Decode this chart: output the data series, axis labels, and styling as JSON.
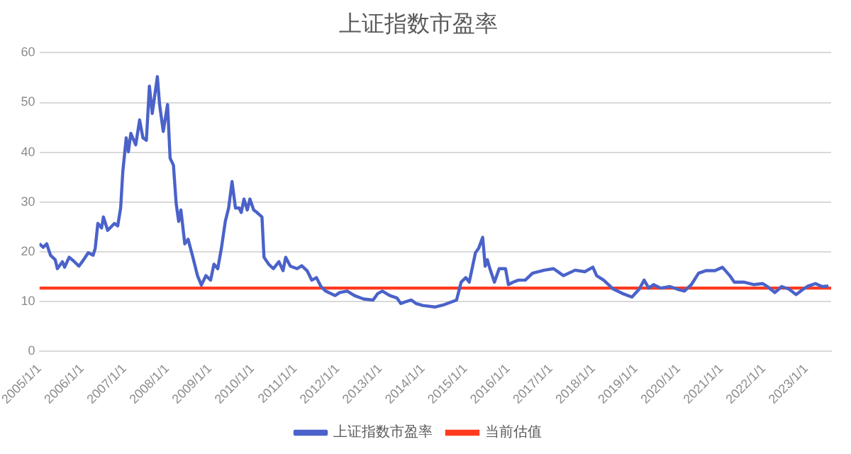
{
  "chart_data": {
    "type": "line",
    "title": "上证指数市盈率",
    "x": [
      "2005-01-01",
      "2005-02-03",
      "2005-03-03",
      "2005-04-05",
      "2005-05-15",
      "2005-06-03",
      "2005-07-16",
      "2005-08-04",
      "2005-09-13",
      "2005-10-23",
      "2005-12-05",
      "2006-01-15",
      "2006-02-24",
      "2006-04-05",
      "2006-04-23",
      "2006-05-15",
      "2006-06-17",
      "2006-07-02",
      "2006-08-08",
      "2006-10-05",
      "2006-11-03",
      "2006-11-28",
      "2006-12-16",
      "2007-01-15",
      "2007-02-03",
      "2007-02-24",
      "2007-04-05",
      "2007-05-08",
      "2007-06-06",
      "2007-07-05",
      "2007-07-31",
      "2007-08-25",
      "2007-10-08",
      "2007-10-27",
      "2007-11-28",
      "2008-01-04",
      "2008-01-26",
      "2008-02-24",
      "2008-03-17",
      "2008-04-08",
      "2008-04-27",
      "2008-05-30",
      "2008-06-28",
      "2008-08-08",
      "2008-09-17",
      "2008-10-20",
      "2008-11-28",
      "2009-01-08",
      "2009-02-06",
      "2009-03-08",
      "2009-04-09",
      "2009-05-12",
      "2009-06-10",
      "2009-07-09",
      "2009-08-08",
      "2009-09-09",
      "2009-09-27",
      "2009-10-20",
      "2009-11-18",
      "2009-12-10",
      "2010-01-12",
      "2010-02-10",
      "2010-03-22",
      "2010-04-09",
      "2010-05-19",
      "2010-06-28",
      "2010-08-15",
      "2010-09-20",
      "2010-10-12",
      "2010-11-22",
      "2011-01-19",
      "2011-02-28",
      "2011-04-13",
      "2011-05-23",
      "2011-07-02",
      "2011-08-11",
      "2011-09-20",
      "2011-12-10",
      "2012-01-19",
      "2012-03-22",
      "2012-05-23",
      "2012-08-11",
      "2012-10-31",
      "2012-12-10",
      "2013-01-19",
      "2013-03-22",
      "2013-05-23",
      "2013-06-25",
      "2013-08-11",
      "2013-09-24",
      "2013-11-03",
      "2014-01-01",
      "2014-04-13",
      "2014-07-05",
      "2014-10-16",
      "2014-11-25",
      "2015-01-04",
      "2015-02-03",
      "2015-03-26",
      "2015-04-23",
      "2015-05-27",
      "2015-06-18",
      "2015-07-06",
      "2015-07-28",
      "2015-09-06",
      "2015-10-16",
      "2015-12-10",
      "2016-01-04",
      "2016-02-14",
      "2016-03-29",
      "2016-05-27",
      "2016-07-28",
      "2016-11-07",
      "2017-01-26",
      "2017-04-20",
      "2017-07-28",
      "2017-10-20",
      "2017-12-28",
      "2018-01-30",
      "2018-03-29",
      "2018-06-21",
      "2018-09-09",
      "2018-11-28",
      "2019-01-30",
      "2019-03-11",
      "2019-04-20",
      "2019-05-31",
      "2019-07-31",
      "2019-10-20",
      "2019-12-20",
      "2020-02-21",
      "2020-04-20",
      "2020-06-21",
      "2020-08-22",
      "2020-11-10",
      "2021-01-12",
      "2021-03-15",
      "2021-04-23",
      "2021-07-13",
      "2021-10-05",
      "2021-12-24",
      "2022-02-03",
      "2022-04-06",
      "2022-06-03",
      "2022-08-04",
      "2022-10-05",
      "2022-12-06",
      "2023-01-15",
      "2023-03-18",
      "2023-05-16",
      "2023-07-08"
    ],
    "series": [
      {
        "name": "上证指数市盈率",
        "color": "#4a62c9",
        "values": [
          21.6,
          20.9,
          21.6,
          19.3,
          18.4,
          16.6,
          18.0,
          16.9,
          18.9,
          18.1,
          17.1,
          18.4,
          19.8,
          19.3,
          20.7,
          25.7,
          24.8,
          27.0,
          24.3,
          25.7,
          25.2,
          28.8,
          36.1,
          42.9,
          40.1,
          43.8,
          41.5,
          46.5,
          42.9,
          42.4,
          53.3,
          47.8,
          55.2,
          49.6,
          44.2,
          49.6,
          38.8,
          37.4,
          29.7,
          26.1,
          28.4,
          21.6,
          22.5,
          18.9,
          15.2,
          13.3,
          15.2,
          14.3,
          17.5,
          16.6,
          20.7,
          26.1,
          28.8,
          34.1,
          28.8,
          28.8,
          27.9,
          30.6,
          28.4,
          30.6,
          28.4,
          27.9,
          27.0,
          18.9,
          17.5,
          16.6,
          18.0,
          16.2,
          18.9,
          17.1,
          16.6,
          17.2,
          16.2,
          14.3,
          14.8,
          13.0,
          12.1,
          11.2,
          11.8,
          12.1,
          11.2,
          10.5,
          10.3,
          11.6,
          12.1,
          11.2,
          10.7,
          9.6,
          10.0,
          10.3,
          9.6,
          9.2,
          8.9,
          9.4,
          10.3,
          13.9,
          14.8,
          13.9,
          19.8,
          20.7,
          22.9,
          17.1,
          18.4,
          16.6,
          13.9,
          16.6,
          16.6,
          13.4,
          13.9,
          14.3,
          14.3,
          15.7,
          16.3,
          16.6,
          15.2,
          16.3,
          16.0,
          16.9,
          15.2,
          14.3,
          12.5,
          11.6,
          10.9,
          12.5,
          14.3,
          12.7,
          13.4,
          12.7,
          13.0,
          12.5,
          12.1,
          13.4,
          15.7,
          16.2,
          16.2,
          16.9,
          15.2,
          13.9,
          13.9,
          13.4,
          13.6,
          13.0,
          11.8,
          13.0,
          12.5,
          11.4,
          12.5,
          13.1,
          13.6,
          13.0,
          13.1
        ]
      }
    ],
    "ref_lines": [
      {
        "axis": "y",
        "value": 12.7,
        "label": "当前估值",
        "color": "#ff3b1f"
      }
    ],
    "xlim": [
      "2005-01-01",
      "2023-08-01"
    ],
    "xticks": [
      {
        "value": "2005-01-01",
        "label": "2005/1/1"
      },
      {
        "value": "2006-01-01",
        "label": "2006/1/1"
      },
      {
        "value": "2007-01-01",
        "label": "2007/1/1"
      },
      {
        "value": "2008-01-01",
        "label": "2008/1/1"
      },
      {
        "value": "2009-01-01",
        "label": "2009/1/1"
      },
      {
        "value": "2010-01-01",
        "label": "2010/1/1"
      },
      {
        "value": "2011-01-01",
        "label": "2011/1/1"
      },
      {
        "value": "2012-01-01",
        "label": "2012/1/1"
      },
      {
        "value": "2013-01-01",
        "label": "2013/1/1"
      },
      {
        "value": "2014-01-01",
        "label": "2014/1/1"
      },
      {
        "value": "2015-01-01",
        "label": "2015/1/1"
      },
      {
        "value": "2016-01-01",
        "label": "2016/1/1"
      },
      {
        "value": "2017-01-01",
        "label": "2017/1/1"
      },
      {
        "value": "2018-01-01",
        "label": "2018/1/1"
      },
      {
        "value": "2019-01-01",
        "label": "2019/1/1"
      },
      {
        "value": "2020-01-01",
        "label": "2020/1/1"
      },
      {
        "value": "2021-01-01",
        "label": "2021/1/1"
      },
      {
        "value": "2022-01-01",
        "label": "2022/1/1"
      },
      {
        "value": "2023-01-01",
        "label": "2023/1/1"
      }
    ],
    "ylim": [
      0,
      60
    ],
    "yticks": [
      0,
      10,
      20,
      30,
      40,
      50,
      60
    ],
    "grid": "y",
    "legend": "bottom",
    "marker": "none",
    "line_style": "solid"
  }
}
